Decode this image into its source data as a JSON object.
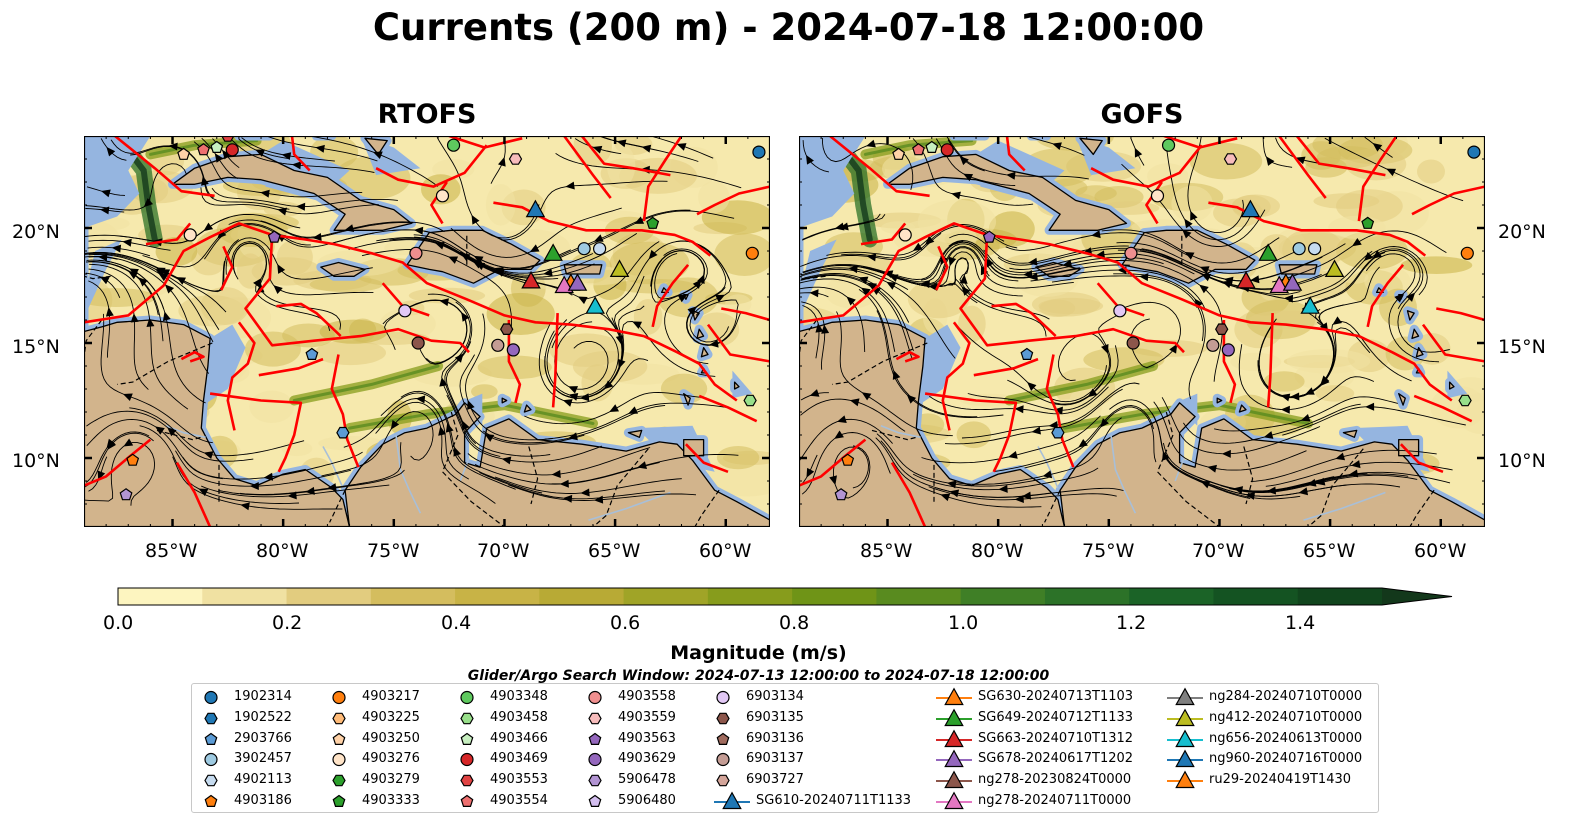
{
  "title": "Currents (200 m) - 2024-07-18 12:00:00",
  "panels": [
    {
      "title": "RTOFS"
    },
    {
      "title": "GOFS"
    }
  ],
  "axes": {
    "x_ticks": [
      "85°W",
      "80°W",
      "75°W",
      "70°W",
      "65°W",
      "60°W"
    ],
    "y_ticks": [
      "20°N",
      "15°N",
      "10°N"
    ]
  },
  "colorbar": {
    "label": "Magnitude (m/s)",
    "ticks": [
      "0.0",
      "0.2",
      "0.4",
      "0.6",
      "0.8",
      "1.0",
      "1.2",
      "1.4"
    ],
    "range": [
      0,
      1.5
    ],
    "colors": [
      "#fdf5c0",
      "#f0e1a2",
      "#e2cc7f",
      "#d4bd5e",
      "#c8b346",
      "#b8aa35",
      "#a0a427",
      "#879c1c",
      "#6f9417",
      "#598b1f",
      "#3f7f26",
      "#2c7228",
      "#1b6327",
      "#145322",
      "#11451d",
      "#13381b"
    ]
  },
  "search_window": "Glider/Argo Search Window: 2024-07-13 12:00:00 to 2024-07-18 12:00:00",
  "legend": {
    "columns": [
      [
        {
          "label": "1902314",
          "marker": "circle",
          "color": "#1f77b4"
        },
        {
          "label": "1902522",
          "marker": "hexagon",
          "color": "#1f77b4"
        },
        {
          "label": "2903766",
          "marker": "pentagon",
          "color": "#5b9bd5"
        },
        {
          "label": "3902457",
          "marker": "circle",
          "color": "#9ecae1"
        },
        {
          "label": "4902113",
          "marker": "hexagon",
          "color": "#c6dbef"
        },
        {
          "label": "4903186",
          "marker": "pentagon",
          "color": "#ff7f0e"
        }
      ],
      [
        {
          "label": "4903217",
          "marker": "circle",
          "color": "#ff7f0e"
        },
        {
          "label": "4903225",
          "marker": "hexagon",
          "color": "#ffbb78"
        },
        {
          "label": "4903250",
          "marker": "pentagon",
          "color": "#ffd2a8"
        },
        {
          "label": "4903276",
          "marker": "circle",
          "color": "#ffe4c8"
        },
        {
          "label": "4903279",
          "marker": "hexagon",
          "color": "#2ca02c"
        },
        {
          "label": "4903333",
          "marker": "pentagon",
          "color": "#2ca02c"
        }
      ],
      [
        {
          "label": "4903348",
          "marker": "circle",
          "color": "#5ec95e"
        },
        {
          "label": "4903458",
          "marker": "hexagon",
          "color": "#98df8a"
        },
        {
          "label": "4903466",
          "marker": "pentagon",
          "color": "#c7efc0"
        },
        {
          "label": "4903469",
          "marker": "circle",
          "color": "#d62728"
        },
        {
          "label": "4903553",
          "marker": "hexagon",
          "color": "#e04343"
        },
        {
          "label": "4903554",
          "marker": "pentagon",
          "color": "#ee7070"
        }
      ],
      [
        {
          "label": "4903558",
          "marker": "circle",
          "color": "#f08f8f"
        },
        {
          "label": "4903559",
          "marker": "hexagon",
          "color": "#f7bcbc"
        },
        {
          "label": "4903563",
          "marker": "pentagon",
          "color": "#9467bd"
        },
        {
          "label": "4903629",
          "marker": "circle",
          "color": "#9467bd"
        },
        {
          "label": "5906478",
          "marker": "hexagon",
          "color": "#b294d3"
        },
        {
          "label": "5906480",
          "marker": "pentagon",
          "color": "#d4bff0"
        }
      ],
      [
        {
          "label": "6903134",
          "marker": "circle",
          "color": "#e2c8f5"
        },
        {
          "label": "6903135",
          "marker": "hexagon",
          "color": "#8c564b"
        },
        {
          "label": "6903136",
          "marker": "pentagon",
          "color": "#a06b5e"
        },
        {
          "label": "6903137",
          "marker": "circle",
          "color": "#c49c94"
        },
        {
          "label": "6903727",
          "marker": "hexagon",
          "color": "#d4a59a"
        },
        {
          "label": "SG610-20240711T1133",
          "marker": "triangle-line",
          "color": "#1f77b4"
        }
      ],
      [
        {
          "label": "SG630-20240713T1103",
          "marker": "triangle-line",
          "color": "#ff7f0e"
        },
        {
          "label": "SG649-20240712T1133",
          "marker": "triangle-line",
          "color": "#2ca02c"
        },
        {
          "label": "SG663-20240710T1312",
          "marker": "triangle-line",
          "color": "#d62728"
        },
        {
          "label": "SG678-20240617T1202",
          "marker": "triangle-line",
          "color": "#9467bd"
        },
        {
          "label": "ng278-20230824T0000",
          "marker": "triangle-line",
          "color": "#8c564b"
        },
        {
          "label": "ng278-20240711T0000",
          "marker": "triangle-line",
          "color": "#e377c2"
        }
      ],
      [
        {
          "label": "ng284-20240710T0000",
          "marker": "triangle-line",
          "color": "#7f7f7f"
        },
        {
          "label": "ng412-20240710T0000",
          "marker": "triangle-line",
          "color": "#bcbd22"
        },
        {
          "label": "ng656-20240613T0000",
          "marker": "triangle-line",
          "color": "#17becf"
        },
        {
          "label": "ng960-20240716T0000",
          "marker": "triangle-line",
          "color": "#1f77b4"
        },
        {
          "label": "ru29-20240419T1430",
          "marker": "triangle-line",
          "color": "#ff7f0e"
        }
      ]
    ]
  },
  "map": {
    "extent_lon": [
      -89,
      -58
    ],
    "extent_lat": [
      7,
      24
    ],
    "colors": {
      "ocean_shelf": "#95b5e0",
      "land": "#d2b48c",
      "eez": "#ff0000",
      "streamline": "#000000",
      "river": "#a8bfd8"
    },
    "platforms_rtofs": [
      {
        "lon": -82.3,
        "lat": 23.4,
        "marker": "circle",
        "color": "#d62728"
      },
      {
        "lon": -83.6,
        "lat": 23.4,
        "marker": "pentagon",
        "color": "#ee7070"
      },
      {
        "lon": -84.5,
        "lat": 23.2,
        "marker": "pentagon",
        "color": "#ffd2a8"
      },
      {
        "lon": -83.0,
        "lat": 23.5,
        "marker": "pentagon",
        "color": "#c7efc0"
      },
      {
        "lon": -82.5,
        "lat": 24.0,
        "marker": "hexagon",
        "color": "#e04343"
      },
      {
        "lon": -72.3,
        "lat": 23.6,
        "marker": "circle",
        "color": "#5ec95e"
      },
      {
        "lon": -69.5,
        "lat": 23.0,
        "marker": "hexagon",
        "color": "#f7bcbc"
      },
      {
        "lon": -58.5,
        "lat": 23.3,
        "marker": "circle",
        "color": "#1f77b4"
      },
      {
        "lon": -72.8,
        "lat": 21.4,
        "marker": "circle",
        "color": "#ffe4c8"
      },
      {
        "lon": -84.2,
        "lat": 19.7,
        "marker": "circle",
        "color": "#ffe4c8"
      },
      {
        "lon": -80.4,
        "lat": 19.6,
        "marker": "pentagon",
        "color": "#9467bd"
      },
      {
        "lon": -74.0,
        "lat": 18.9,
        "marker": "circle",
        "color": "#f08f8f"
      },
      {
        "lon": -65.7,
        "lat": 19.1,
        "marker": "circle",
        "color": "#c6dbef"
      },
      {
        "lon": -66.4,
        "lat": 19.1,
        "marker": "circle",
        "color": "#9ecae1"
      },
      {
        "lon": -63.3,
        "lat": 20.2,
        "marker": "pentagon",
        "color": "#2ca02c"
      },
      {
        "lon": -58.8,
        "lat": 18.9,
        "marker": "circle",
        "color": "#ff7f0e"
      },
      {
        "lon": -74.5,
        "lat": 16.4,
        "marker": "circle",
        "color": "#e2c8f5"
      },
      {
        "lon": -73.9,
        "lat": 15.0,
        "marker": "circle",
        "color": "#8c564b"
      },
      {
        "lon": -69.9,
        "lat": 15.6,
        "marker": "hexagon",
        "color": "#8c564b"
      },
      {
        "lon": -70.3,
        "lat": 14.9,
        "marker": "circle",
        "color": "#c49c94"
      },
      {
        "lon": -69.6,
        "lat": 14.7,
        "marker": "circle",
        "color": "#9467bd"
      },
      {
        "lon": -78.7,
        "lat": 14.5,
        "marker": "pentagon",
        "color": "#5b9bd5"
      },
      {
        "lon": -58.9,
        "lat": 12.5,
        "marker": "hexagon",
        "color": "#98df8a"
      },
      {
        "lon": -77.3,
        "lat": 11.1,
        "marker": "hexagon",
        "color": "#5b9bd5"
      },
      {
        "lon": -86.8,
        "lat": 9.9,
        "marker": "pentagon",
        "color": "#ff7f0e"
      },
      {
        "lon": -87.1,
        "lat": 8.4,
        "marker": "pentagon",
        "color": "#b294d3"
      }
    ],
    "platforms_gofs": [
      {
        "lon": -82.3,
        "lat": 23.4,
        "marker": "circle",
        "color": "#d62728"
      },
      {
        "lon": -83.6,
        "lat": 23.4,
        "marker": "pentagon",
        "color": "#ee7070"
      },
      {
        "lon": -84.5,
        "lat": 23.2,
        "marker": "pentagon",
        "color": "#ffd2a8"
      },
      {
        "lon": -83.0,
        "lat": 23.5,
        "marker": "pentagon",
        "color": "#c7efc0"
      },
      {
        "lon": -72.3,
        "lat": 23.6,
        "marker": "circle",
        "color": "#5ec95e"
      },
      {
        "lon": -69.5,
        "lat": 23.0,
        "marker": "hexagon",
        "color": "#f7bcbc"
      },
      {
        "lon": -58.5,
        "lat": 23.3,
        "marker": "circle",
        "color": "#1f77b4"
      },
      {
        "lon": -72.8,
        "lat": 21.4,
        "marker": "circle",
        "color": "#ffe4c8"
      },
      {
        "lon": -84.2,
        "lat": 19.7,
        "marker": "circle",
        "color": "#ffe4c8"
      },
      {
        "lon": -80.4,
        "lat": 19.6,
        "marker": "pentagon",
        "color": "#9467bd"
      },
      {
        "lon": -74.0,
        "lat": 18.9,
        "marker": "circle",
        "color": "#f08f8f"
      },
      {
        "lon": -65.7,
        "lat": 19.1,
        "marker": "circle",
        "color": "#c6dbef"
      },
      {
        "lon": -66.4,
        "lat": 19.1,
        "marker": "circle",
        "color": "#9ecae1"
      },
      {
        "lon": -63.3,
        "lat": 20.2,
        "marker": "pentagon",
        "color": "#2ca02c"
      },
      {
        "lon": -58.8,
        "lat": 18.9,
        "marker": "circle",
        "color": "#ff7f0e"
      },
      {
        "lon": -74.5,
        "lat": 16.4,
        "marker": "circle",
        "color": "#e2c8f5"
      },
      {
        "lon": -73.9,
        "lat": 15.0,
        "marker": "circle",
        "color": "#8c564b"
      },
      {
        "lon": -69.9,
        "lat": 15.6,
        "marker": "hexagon",
        "color": "#8c564b"
      },
      {
        "lon": -70.3,
        "lat": 14.9,
        "marker": "circle",
        "color": "#c49c94"
      },
      {
        "lon": -69.6,
        "lat": 14.7,
        "marker": "circle",
        "color": "#9467bd"
      },
      {
        "lon": -78.7,
        "lat": 14.5,
        "marker": "pentagon",
        "color": "#5b9bd5"
      },
      {
        "lon": -58.9,
        "lat": 12.5,
        "marker": "hexagon",
        "color": "#98df8a"
      },
      {
        "lon": -77.3,
        "lat": 11.1,
        "marker": "hexagon",
        "color": "#5b9bd5"
      },
      {
        "lon": -86.8,
        "lat": 9.9,
        "marker": "pentagon",
        "color": "#ff7f0e"
      },
      {
        "lon": -87.1,
        "lat": 8.4,
        "marker": "pentagon",
        "color": "#b294d3"
      }
    ],
    "gliders": [
      {
        "lon": -68.6,
        "lat": 20.8,
        "color": "#1f77b4"
      },
      {
        "lon": -67.8,
        "lat": 18.9,
        "color": "#2ca02c"
      },
      {
        "lon": -68.8,
        "lat": 17.7,
        "color": "#d62728"
      },
      {
        "lon": -67.0,
        "lat": 17.6,
        "color": "#ff7f0e"
      },
      {
        "lon": -67.3,
        "lat": 17.5,
        "color": "#e377c2"
      },
      {
        "lon": -66.7,
        "lat": 17.6,
        "color": "#9467bd"
      },
      {
        "lon": -64.8,
        "lat": 18.2,
        "color": "#bcbd22"
      },
      {
        "lon": -65.9,
        "lat": 16.6,
        "color": "#17becf"
      }
    ]
  }
}
